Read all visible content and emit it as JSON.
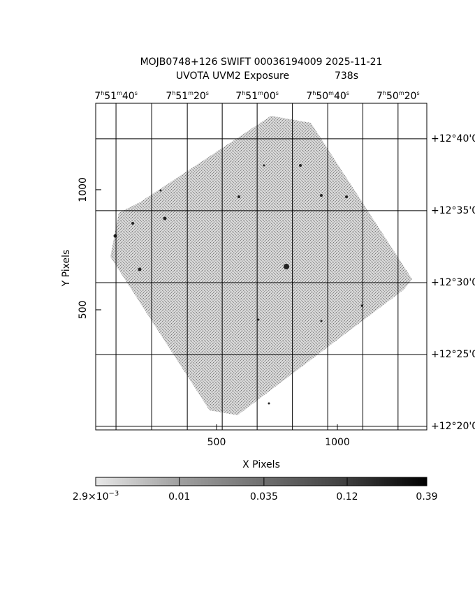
{
  "chart_data": {
    "type": "image",
    "title": "MOJB0748+126 SWIFT 00036194009 2025-11-21",
    "subtitle": "UVOTA UVM2 Exposure",
    "exposure": "738s",
    "xlabel": "X Pixels",
    "ylabel": "Y Pixels",
    "xlim": [
      0,
      1370
    ],
    "ylim": [
      0,
      1360
    ],
    "xticks": [
      500,
      1000
    ],
    "yticks": [
      500,
      1000
    ],
    "ra_ticks": [
      {
        "value": 84,
        "label": [
          "7",
          "h",
          "51",
          "m",
          "40",
          "s"
        ]
      },
      {
        "value": 379,
        "label": [
          "7",
          "h",
          "51",
          "m",
          "20",
          "s"
        ]
      },
      {
        "value": 668,
        "label": [
          "7",
          "h",
          "51",
          "m",
          "00",
          "s"
        ]
      },
      {
        "value": 960,
        "label": [
          "7",
          "h",
          "50",
          "m",
          "40",
          "s"
        ]
      },
      {
        "value": 1251,
        "label": [
          "7",
          "h",
          "50",
          "m",
          "20",
          "s"
        ]
      }
    ],
    "dec_ticks": [
      {
        "value": 1212,
        "label": "+12°40'0"
      },
      {
        "value": 913,
        "label": "+12°35'0"
      },
      {
        "value": 613,
        "label": "+12°30'0"
      },
      {
        "value": 314,
        "label": "+12°25'0"
      },
      {
        "value": 15,
        "label": "+12°20'0"
      }
    ],
    "colorbar": {
      "scale": "log",
      "lim": [
        0.0029,
        0.39
      ],
      "ticks": [
        {
          "value": 0.0029,
          "label": "2.9×10",
          "exponent": "−3"
        },
        0.01,
        0.035,
        0.12,
        0.39
      ]
    }
  }
}
